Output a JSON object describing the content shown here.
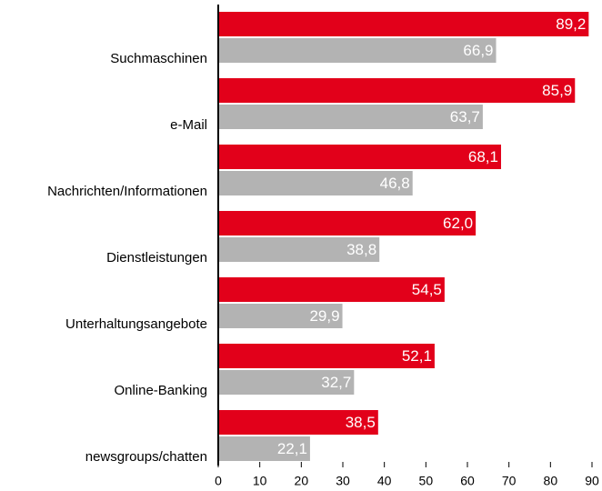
{
  "chart_data": {
    "type": "bar",
    "orientation": "horizontal",
    "categories": [
      "Suchmaschinen",
      "e-Mail",
      "Nachrichten/Informationen",
      "Dienstleistungen",
      "Unterhaltungsangebote",
      "Online-Banking",
      "newsgroups/chatten"
    ],
    "series": [
      {
        "color": "#e2001a",
        "values": [
          89.2,
          85.9,
          68.1,
          62.0,
          54.5,
          52.1,
          38.5
        ],
        "value_labels": [
          "89,2",
          "85,9",
          "68,1",
          "62,0",
          "54,5",
          "52,1",
          "38,5"
        ]
      },
      {
        "color": "#b3b3b3",
        "values": [
          66.9,
          63.7,
          46.8,
          38.8,
          29.9,
          32.7,
          22.1
        ],
        "value_labels": [
          "66,9",
          "63,7",
          "46,8",
          "38,8",
          "29,9",
          "32,7",
          "22,1"
        ]
      }
    ],
    "xlim": [
      0,
      90
    ],
    "xticks": [
      0,
      10,
      20,
      30,
      40,
      50,
      60,
      70,
      80,
      90
    ]
  }
}
